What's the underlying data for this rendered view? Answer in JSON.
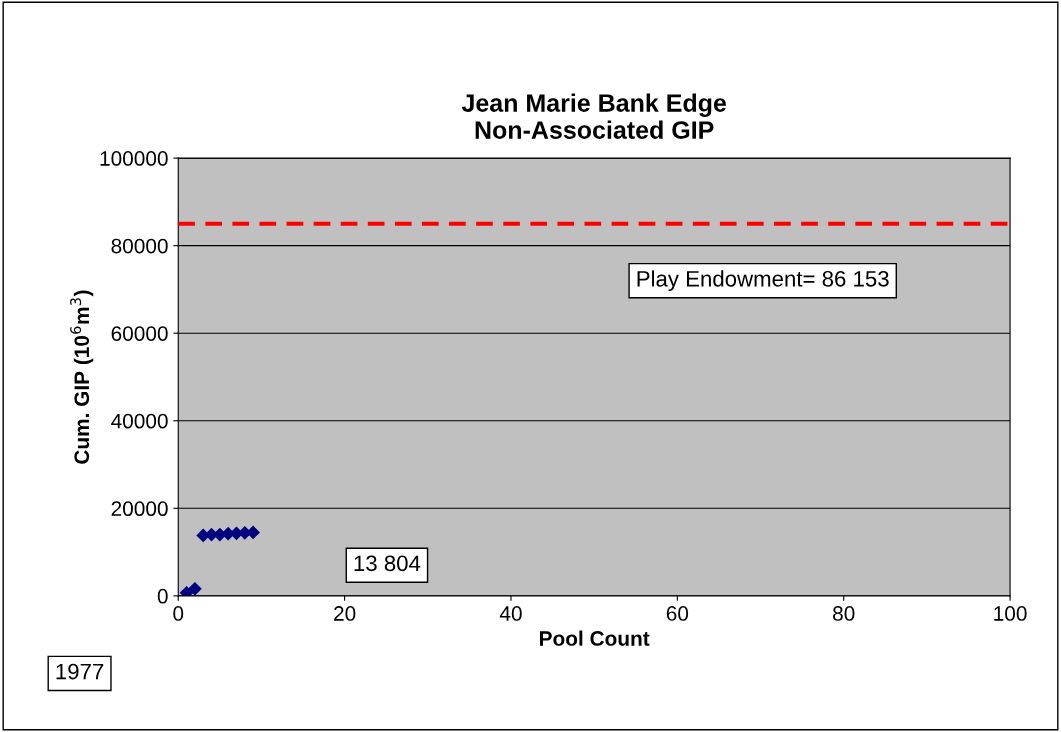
{
  "chart_data": {
    "type": "scatter",
    "title": "Jean Marie Bank Edge\nNon-Associated GIP",
    "xlabel": "Pool Count",
    "ylabel": "Cum. GIP (10$^{6}$m$^{3}$)",
    "x": [
      1,
      2,
      3,
      4,
      5,
      6,
      7,
      8,
      9
    ],
    "series": [
      {
        "color": "#000080",
        "values": [
          700,
          1600,
          13800,
          14000,
          14000,
          14200,
          14300,
          14400,
          14500
        ]
      }
    ],
    "marker": "diamond",
    "xlim": [
      0,
      100
    ],
    "xticks": [
      0,
      20,
      40,
      60,
      80,
      100
    ],
    "ylim": [
      0,
      100000
    ],
    "yticks": [
      0,
      20000,
      40000,
      60000,
      80000,
      100000
    ],
    "grid": "y",
    "legend": false,
    "ref_lines": [
      {
        "axis": "y",
        "value": 85000,
        "color": "#ff0000",
        "line_style": "dashed"
      }
    ],
    "annotations": [
      "Play Endowment= 86 153",
      "13 804",
      "1977"
    ]
  }
}
